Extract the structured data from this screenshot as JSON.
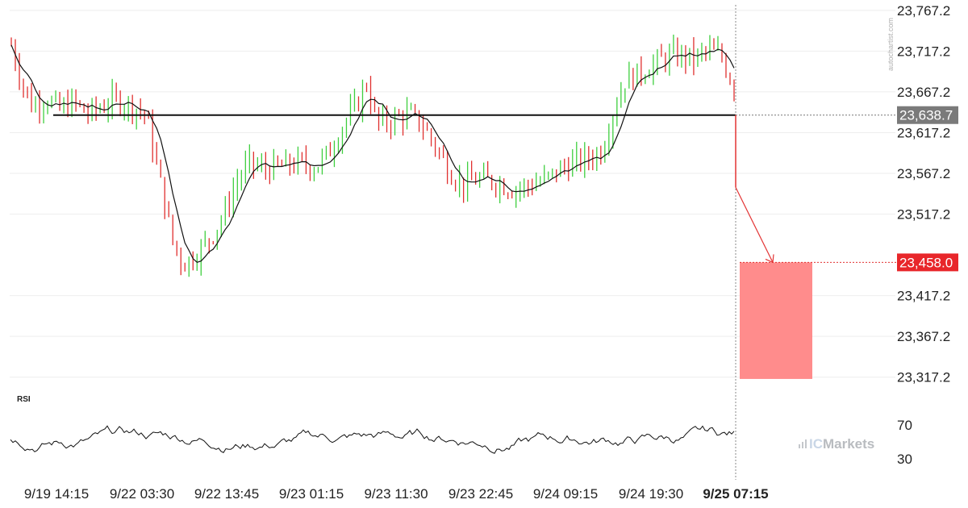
{
  "watermark": "autochartist.com",
  "brand": {
    "prefix": "IC",
    "name": "Markets"
  },
  "colors": {
    "bull": "#3fcf3f",
    "bear": "#e0302f",
    "ma": "#111111",
    "resistance": "#111111",
    "current_tag": "#7a7a7a",
    "target_tag": "#e8262a",
    "target_zone": "#ff8c8c",
    "forecast_arrow": "#e33333",
    "grid": "#eeeeee"
  },
  "chart_data": {
    "type": "candlestick",
    "y_ticks": [
      "23,767.2",
      "23,717.2",
      "23,667.2",
      "23,617.2",
      "23,567.2",
      "23,517.2",
      "23,417.2",
      "23,367.2",
      "23,317.2"
    ],
    "y_tick_values": [
      23767.2,
      23717.2,
      23667.2,
      23617.2,
      23567.2,
      23517.2,
      23417.2,
      23367.2,
      23317.2
    ],
    "ylim": [
      23310,
      23772
    ],
    "x_ticks": [
      "9/19 14:15",
      "9/22 03:30",
      "9/22 13:45",
      "9/23 01:15",
      "9/23 11:30",
      "9/23 22:45",
      "9/24 09:15",
      "9/24 19:30",
      "9/25 07:15"
    ],
    "x_tick_highlight": "9/25 07:15",
    "bars": 180,
    "price_path": [
      [
        0,
        23725
      ],
      [
        6,
        23680
      ],
      [
        12,
        23650
      ],
      [
        20,
        23660
      ],
      [
        28,
        23645
      ],
      [
        36,
        23655
      ],
      [
        44,
        23640
      ],
      [
        52,
        23648
      ],
      [
        60,
        23658
      ],
      [
        70,
        23650
      ],
      [
        78,
        23640
      ],
      [
        86,
        23560
      ],
      [
        94,
        23480
      ],
      [
        100,
        23455
      ],
      [
        108,
        23470
      ],
      [
        116,
        23490
      ],
      [
        124,
        23520
      ],
      [
        130,
        23555
      ],
      [
        138,
        23580
      ],
      [
        146,
        23572
      ],
      [
        156,
        23575
      ],
      [
        166,
        23580
      ],
      [
        176,
        23575
      ],
      [
        184,
        23592
      ],
      [
        192,
        23625
      ],
      [
        200,
        23650
      ],
      [
        206,
        23678
      ],
      [
        212,
        23628
      ],
      [
        220,
        23632
      ],
      [
        230,
        23640
      ],
      [
        238,
        23628
      ],
      [
        246,
        23600
      ],
      [
        254,
        23570
      ],
      [
        262,
        23553
      ],
      [
        270,
        23560
      ],
      [
        280,
        23558
      ],
      [
        290,
        23548
      ],
      [
        300,
        23552
      ],
      [
        310,
        23560
      ],
      [
        318,
        23572
      ],
      [
        326,
        23580
      ],
      [
        334,
        23585
      ],
      [
        342,
        23595
      ],
      [
        350,
        23650
      ],
      [
        356,
        23682
      ],
      [
        364,
        23690
      ],
      [
        372,
        23700
      ],
      [
        380,
        23710
      ],
      [
        388,
        23712
      ],
      [
        396,
        23708
      ],
      [
        404,
        23718
      ],
      [
        412,
        23710
      ],
      [
        419,
        23672
      ]
    ],
    "current_price": "23,638.7",
    "current_price_value": 23638.7,
    "resistance_level": 23638.7,
    "forecast_start_value": 23550,
    "target_price": "23,458.0",
    "target_price_value": 23458.0,
    "target_zone": {
      "top": 23458.0,
      "bottom": 23315
    },
    "rsi": {
      "label": "RSI",
      "levels": [
        "70",
        "30"
      ],
      "level_values": [
        70,
        30
      ]
    }
  }
}
